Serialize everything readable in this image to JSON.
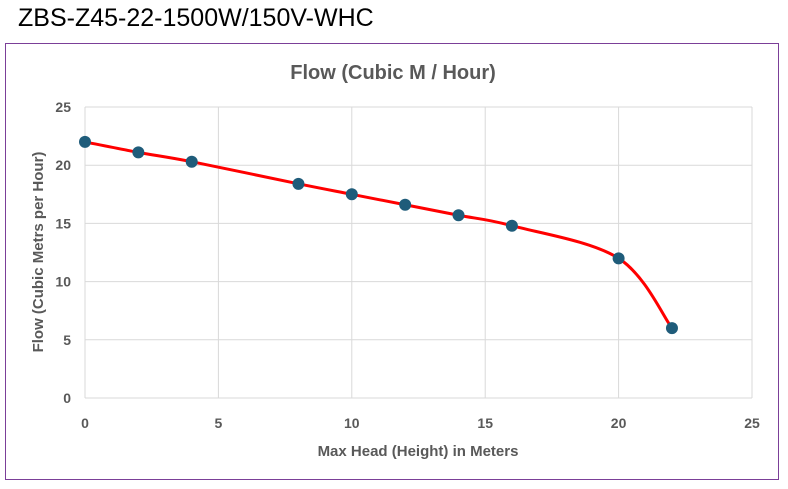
{
  "page": {
    "heading": "ZBS-Z45-22-1500W/150V-WHC"
  },
  "colors": {
    "frame_border": "#7b3f98",
    "series_line": "#ff0000",
    "marker": "#1f5c7a",
    "text": "#595959",
    "grid": "#d9d9d9"
  },
  "chart_data": {
    "type": "scatter",
    "title": "Flow (Cubic M / Hour)",
    "xlabel": "Max Head (Height) in Meters",
    "ylabel": "Flow (Cubic Metrs per Hour)",
    "xlim": [
      0,
      25
    ],
    "ylim": [
      0,
      25
    ],
    "x_ticks": [
      0,
      5,
      10,
      15,
      20,
      25
    ],
    "y_ticks": [
      0,
      5,
      10,
      15,
      20,
      25
    ],
    "grid": true,
    "smooth_line": true,
    "series": [
      {
        "x": [
          0,
          2,
          4,
          8,
          10,
          12,
          14,
          16,
          20,
          22
        ],
        "y": [
          22,
          21.1,
          20.3,
          18.4,
          17.5,
          16.6,
          15.7,
          14.8,
          12,
          6
        ]
      }
    ]
  }
}
